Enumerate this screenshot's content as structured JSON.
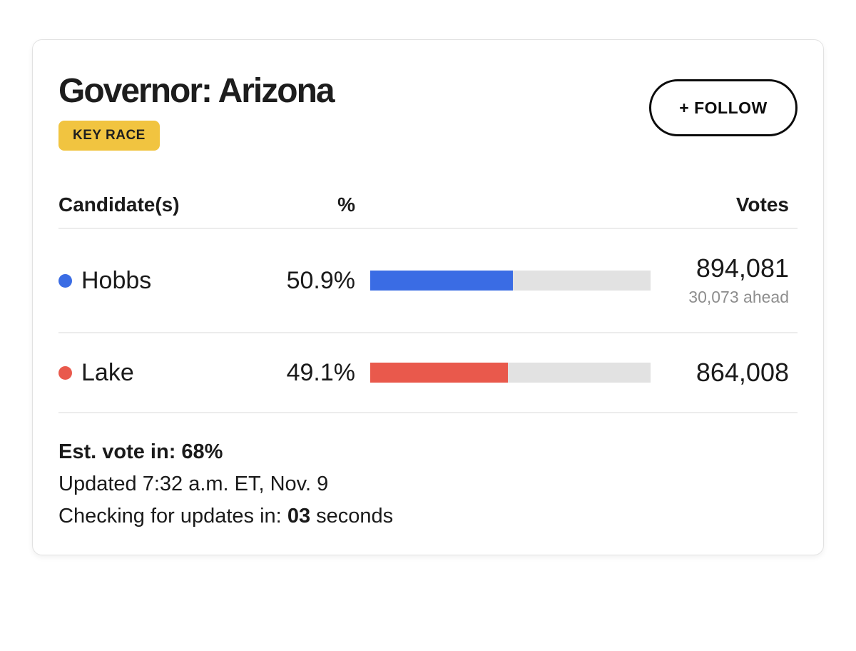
{
  "card": {
    "title": "Governor: Arizona",
    "badge_label": "KEY RACE",
    "follow_label": "+ FOLLOW",
    "table": {
      "headers": {
        "candidate": "Candidate(s)",
        "percent": "%",
        "votes": "Votes"
      },
      "rows": [
        {
          "name": "Hobbs",
          "percent": "50.9%",
          "percent_value": 50.9,
          "votes": "894,081",
          "ahead": "30,073 ahead",
          "color": "#3A6CE4"
        },
        {
          "name": "Lake",
          "percent": "49.1%",
          "percent_value": 49.1,
          "votes": "864,008",
          "color": "#E9594C"
        }
      ]
    },
    "footer": {
      "est_label": "Est. vote in:",
      "est_value": "68%",
      "updated": "Updated 7:32 a.m. ET, Nov. 9",
      "checking_prefix": "Checking for updates in:",
      "checking_value": "03",
      "checking_suffix": "seconds"
    },
    "colors": {
      "badge_bg": "#F1C440",
      "hobbs_blue": "#3A6CE4",
      "lake_red": "#E9594C",
      "bar_track": "#E2E2E2",
      "muted_text": "#8E8E8E"
    }
  }
}
